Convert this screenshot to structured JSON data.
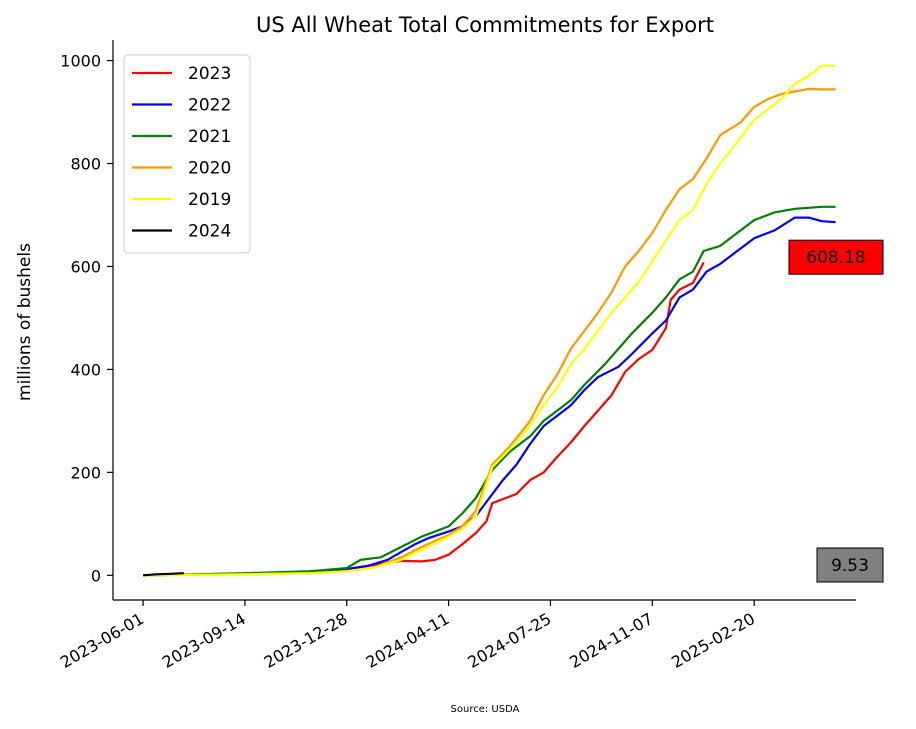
{
  "chart_data": {
    "type": "line",
    "title": "US All Wheat Total Commitments for Export",
    "xlabel": "",
    "ylabel": "millions of bushels",
    "source": "Source: USDA",
    "x_tick_labels": [
      "2023-06-01",
      "2023-09-14",
      "2023-12-28",
      "2024-04-11",
      "2024-07-25",
      "2024-11-07",
      "2025-02-20"
    ],
    "x_tick_dates": [
      "2023-06-01",
      "2023-09-14",
      "2023-12-28",
      "2024-04-11",
      "2024-07-25",
      "2024-11-07",
      "2025-02-20"
    ],
    "xlim": [
      "2023-05-01",
      "2025-06-05"
    ],
    "y_ticks": [
      0,
      200,
      400,
      600,
      800,
      1000
    ],
    "ylim": [
      -48,
      1040
    ],
    "grid": false,
    "legend_position": "top-left",
    "series": [
      {
        "name": "2023",
        "color": "#ff0000",
        "points": [
          [
            "2023-06-01",
            0
          ],
          [
            "2023-09-14",
            3
          ],
          [
            "2023-11-20",
            6
          ],
          [
            "2023-12-28",
            12
          ],
          [
            "2024-01-25",
            20
          ],
          [
            "2024-02-22",
            28
          ],
          [
            "2024-03-14",
            27
          ],
          [
            "2024-03-28",
            30
          ],
          [
            "2024-04-11",
            40
          ],
          [
            "2024-04-25",
            60
          ],
          [
            "2024-05-09",
            82
          ],
          [
            "2024-05-20",
            105
          ],
          [
            "2024-05-26",
            140
          ],
          [
            "2024-06-06",
            148
          ],
          [
            "2024-06-20",
            158
          ],
          [
            "2024-07-04",
            185
          ],
          [
            "2024-07-18",
            200
          ],
          [
            "2024-08-01",
            230
          ],
          [
            "2024-08-15",
            258
          ],
          [
            "2024-08-29",
            290
          ],
          [
            "2024-09-12",
            320
          ],
          [
            "2024-09-26",
            350
          ],
          [
            "2024-10-10",
            395
          ],
          [
            "2024-10-24",
            420
          ],
          [
            "2024-11-07",
            438
          ],
          [
            "2024-11-21",
            480
          ],
          [
            "2024-11-26",
            535
          ],
          [
            "2024-12-05",
            555
          ],
          [
            "2024-12-19",
            568
          ],
          [
            "2024-12-30",
            608
          ]
        ]
      },
      {
        "name": "2022",
        "color": "#0000ff",
        "points": [
          [
            "2023-06-01",
            0
          ],
          [
            "2023-09-14",
            3
          ],
          [
            "2023-11-20",
            6
          ],
          [
            "2023-12-28",
            12
          ],
          [
            "2024-01-18",
            18
          ],
          [
            "2024-02-08",
            30
          ],
          [
            "2024-02-22",
            45
          ],
          [
            "2024-03-07",
            60
          ],
          [
            "2024-03-21",
            72
          ],
          [
            "2024-04-11",
            85
          ],
          [
            "2024-04-25",
            95
          ],
          [
            "2024-05-09",
            115
          ],
          [
            "2024-05-23",
            150
          ],
          [
            "2024-06-06",
            185
          ],
          [
            "2024-06-20",
            215
          ],
          [
            "2024-07-04",
            255
          ],
          [
            "2024-07-18",
            290
          ],
          [
            "2024-08-01",
            310
          ],
          [
            "2024-08-15",
            330
          ],
          [
            "2024-08-29",
            360
          ],
          [
            "2024-09-12",
            385
          ],
          [
            "2024-10-03",
            405
          ],
          [
            "2024-10-17",
            430
          ],
          [
            "2024-11-07",
            470
          ],
          [
            "2024-11-21",
            495
          ],
          [
            "2024-12-05",
            540
          ],
          [
            "2024-12-19",
            555
          ],
          [
            "2025-01-02",
            590
          ],
          [
            "2025-01-16",
            605
          ],
          [
            "2025-02-06",
            635
          ],
          [
            "2025-02-20",
            655
          ],
          [
            "2025-03-13",
            670
          ],
          [
            "2025-04-03",
            695
          ],
          [
            "2025-04-17",
            695
          ],
          [
            "2025-05-01",
            688
          ],
          [
            "2025-05-15",
            686
          ]
        ]
      },
      {
        "name": "2021",
        "color": "#008000",
        "points": [
          [
            "2023-06-01",
            0
          ],
          [
            "2023-09-14",
            4
          ],
          [
            "2023-11-20",
            8
          ],
          [
            "2023-12-28",
            14
          ],
          [
            "2024-01-11",
            30
          ],
          [
            "2024-02-01",
            35
          ],
          [
            "2024-02-22",
            55
          ],
          [
            "2024-03-14",
            75
          ],
          [
            "2024-04-11",
            95
          ],
          [
            "2024-04-25",
            120
          ],
          [
            "2024-05-09",
            150
          ],
          [
            "2024-05-26",
            205
          ],
          [
            "2024-06-13",
            240
          ],
          [
            "2024-07-04",
            270
          ],
          [
            "2024-07-18",
            300
          ],
          [
            "2024-08-01",
            320
          ],
          [
            "2024-08-15",
            340
          ],
          [
            "2024-08-29",
            370
          ],
          [
            "2024-09-19",
            410
          ],
          [
            "2024-10-03",
            440
          ],
          [
            "2024-10-17",
            470
          ],
          [
            "2024-11-07",
            510
          ],
          [
            "2024-11-21",
            540
          ],
          [
            "2024-12-05",
            575
          ],
          [
            "2024-12-19",
            590
          ],
          [
            "2024-12-30",
            630
          ],
          [
            "2025-01-16",
            640
          ],
          [
            "2025-02-06",
            670
          ],
          [
            "2025-02-20",
            690
          ],
          [
            "2025-03-13",
            705
          ],
          [
            "2025-04-03",
            712
          ],
          [
            "2025-05-01",
            716
          ],
          [
            "2025-05-15",
            716
          ]
        ]
      },
      {
        "name": "2020",
        "color": "#ff9900",
        "points": [
          [
            "2023-06-01",
            0
          ],
          [
            "2023-09-14",
            2
          ],
          [
            "2023-11-20",
            4
          ],
          [
            "2023-12-28",
            8
          ],
          [
            "2024-01-25",
            15
          ],
          [
            "2024-02-22",
            35
          ],
          [
            "2024-03-14",
            55
          ],
          [
            "2024-04-11",
            78
          ],
          [
            "2024-04-25",
            95
          ],
          [
            "2024-05-09",
            125
          ],
          [
            "2024-05-26",
            215
          ],
          [
            "2024-06-13",
            250
          ],
          [
            "2024-07-04",
            300
          ],
          [
            "2024-07-18",
            350
          ],
          [
            "2024-08-01",
            390
          ],
          [
            "2024-08-15",
            440
          ],
          [
            "2024-08-29",
            475
          ],
          [
            "2024-09-12",
            510
          ],
          [
            "2024-09-26",
            550
          ],
          [
            "2024-10-10",
            600
          ],
          [
            "2024-10-24",
            630
          ],
          [
            "2024-11-07",
            665
          ],
          [
            "2024-11-21",
            710
          ],
          [
            "2024-12-05",
            750
          ],
          [
            "2024-12-19",
            770
          ],
          [
            "2025-01-02",
            810
          ],
          [
            "2025-01-16",
            855
          ],
          [
            "2025-02-06",
            880
          ],
          [
            "2025-02-20",
            910
          ],
          [
            "2025-03-06",
            925
          ],
          [
            "2025-03-20",
            935
          ],
          [
            "2025-04-03",
            940
          ],
          [
            "2025-04-17",
            945
          ],
          [
            "2025-05-01",
            944
          ],
          [
            "2025-05-15",
            944
          ]
        ]
      },
      {
        "name": "2019",
        "color": "#ffff00",
        "points": [
          [
            "2023-06-01",
            0
          ],
          [
            "2023-09-14",
            2
          ],
          [
            "2023-11-20",
            4
          ],
          [
            "2023-12-28",
            8
          ],
          [
            "2024-01-25",
            15
          ],
          [
            "2024-02-22",
            30
          ],
          [
            "2024-03-14",
            50
          ],
          [
            "2024-04-11",
            75
          ],
          [
            "2024-04-25",
            90
          ],
          [
            "2024-05-09",
            115
          ],
          [
            "2024-05-26",
            210
          ],
          [
            "2024-06-13",
            245
          ],
          [
            "2024-07-04",
            290
          ],
          [
            "2024-07-18",
            330
          ],
          [
            "2024-08-01",
            365
          ],
          [
            "2024-08-15",
            410
          ],
          [
            "2024-08-29",
            440
          ],
          [
            "2024-09-12",
            475
          ],
          [
            "2024-09-26",
            510
          ],
          [
            "2024-10-10",
            540
          ],
          [
            "2024-10-24",
            570
          ],
          [
            "2024-11-07",
            610
          ],
          [
            "2024-11-21",
            650
          ],
          [
            "2024-12-05",
            690
          ],
          [
            "2024-12-19",
            710
          ],
          [
            "2025-01-02",
            760
          ],
          [
            "2025-01-16",
            800
          ],
          [
            "2025-02-06",
            850
          ],
          [
            "2025-02-20",
            885
          ],
          [
            "2025-03-06",
            905
          ],
          [
            "2025-03-20",
            925
          ],
          [
            "2025-04-03",
            955
          ],
          [
            "2025-04-17",
            970
          ],
          [
            "2025-05-01",
            990
          ],
          [
            "2025-05-15",
            990
          ]
        ]
      },
      {
        "name": "2024",
        "color": "#000000",
        "points": [
          [
            "2023-06-01",
            0
          ],
          [
            "2023-06-15",
            2
          ],
          [
            "2023-06-29",
            3
          ],
          [
            "2023-07-13",
            4
          ]
        ]
      }
    ],
    "annotations": [
      {
        "text": "608.18",
        "y": 618,
        "background": "#ff0000"
      },
      {
        "text": "9.53",
        "y": 20,
        "background": "#808080"
      }
    ]
  }
}
